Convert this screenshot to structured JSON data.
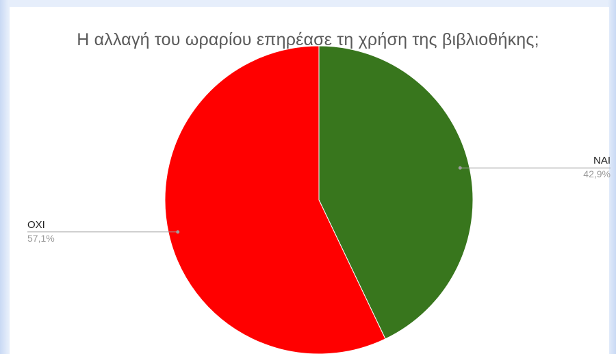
{
  "chart_data": {
    "type": "pie",
    "title": "Η αλλαγή του ωραρίου επηρέασε τη χρήση της βιβλιοθήκης;",
    "slices": [
      {
        "label": "ΝΑΙ",
        "value": 42.9,
        "value_label": "42,9%",
        "color": "#38761d"
      },
      {
        "label": "ΟΧΙ",
        "value": 57.1,
        "value_label": "57,1%",
        "color": "#ff0000"
      }
    ],
    "start_angle": "top",
    "direction": "clockwise",
    "labels": "outside with leader lines"
  }
}
